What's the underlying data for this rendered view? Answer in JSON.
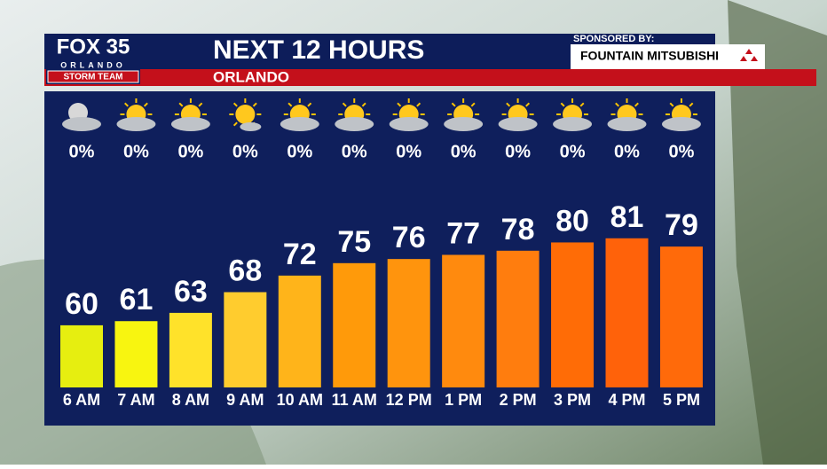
{
  "header": {
    "logo_main": "FOX 35",
    "logo_city": "ORLANDO",
    "logo_team": "STORM TEAM",
    "sponsor_label": "SPONSORED BY:",
    "sponsor_name": "FOUNTAIN MITSUBISHI"
  },
  "chart_data": {
    "type": "bar",
    "title": "NEXT 12 HOURS",
    "subtitle": "ORLANDO",
    "categories": [
      "6 AM",
      "7 AM",
      "8 AM",
      "9 AM",
      "10 AM",
      "11 AM",
      "12 PM",
      "1 PM",
      "2 PM",
      "3 PM",
      "4 PM",
      "5 PM"
    ],
    "values": [
      60,
      61,
      63,
      68,
      72,
      75,
      76,
      77,
      78,
      80,
      81,
      79
    ],
    "colors": [
      "#e6ee10",
      "#f8f510",
      "#ffe22a",
      "#ffcc2e",
      "#ffb41a",
      "#ff9a0a",
      "#ff940d",
      "#ff8a0e",
      "#ff7d0e",
      "#ff6c06",
      "#ff620a",
      "#ff6a0a"
    ],
    "ylim": [
      45,
      100
    ],
    "precipitation": {
      "values": [
        0,
        0,
        0,
        0,
        0,
        0,
        0,
        0,
        0,
        0,
        0,
        0
      ],
      "value_labels": [
        "0%",
        "0%",
        "0%",
        "0%",
        "0%",
        "0%",
        "0%",
        "0%",
        "0%",
        "0%",
        "0%",
        "0%"
      ]
    }
  }
}
